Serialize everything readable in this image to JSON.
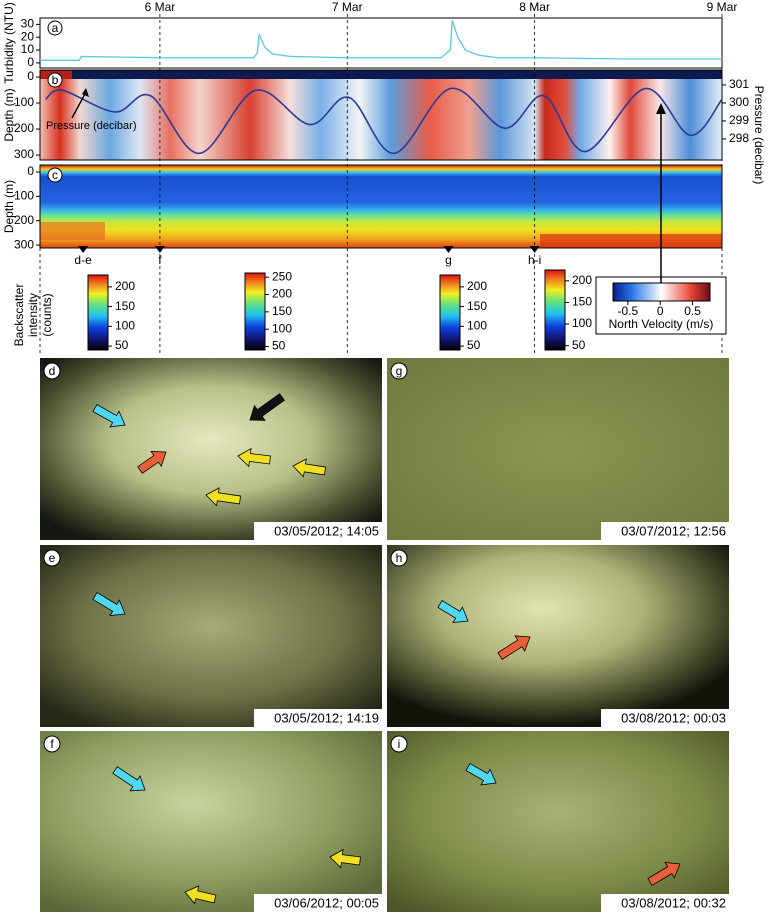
{
  "time_axis": {
    "xlim": [
      5.36,
      9
    ],
    "xticks": [
      {
        "value": 6,
        "label": "6 Mar"
      },
      {
        "value": 7,
        "label": "7 Mar"
      },
      {
        "value": 8,
        "label": "8 Mar"
      },
      {
        "value": 9,
        "label": "9 Mar"
      }
    ],
    "markers": [
      {
        "label": "d-e",
        "x": 5.59
      },
      {
        "label": "f",
        "x": 6.0
      },
      {
        "label": "g",
        "x": 7.54
      },
      {
        "label": "h-i",
        "x": 8.0
      }
    ]
  },
  "chart_data": [
    {
      "type": "line",
      "panel": "a",
      "ylabel": "Turbidity (NTU)",
      "color": "#5cc8dc",
      "x": [
        5.36,
        5.57,
        5.58,
        6.0,
        6.5,
        6.52,
        6.53,
        6.56,
        6.6,
        6.7,
        7.0,
        7.5,
        7.55,
        7.56,
        7.59,
        7.63,
        7.7,
        7.8,
        8.0,
        8.5,
        9.0
      ],
      "values": [
        2,
        2,
        5,
        4,
        4,
        8,
        22,
        12,
        7,
        5,
        4,
        4,
        10,
        33,
        20,
        10,
        6,
        4,
        4,
        3,
        3
      ],
      "ylim": [
        -4,
        35
      ],
      "yticks": [
        0,
        10,
        20,
        30
      ]
    },
    {
      "type": "heatmap-line",
      "panel": "b",
      "ylabel": "Depth (m)",
      "ylim": [
        -27,
        319
      ],
      "yticks": [
        0,
        100,
        200,
        300
      ],
      "y2label": "Pressure (decibar)",
      "y2lim": [
        296.83,
        301.83
      ],
      "y2ticks": [
        298,
        299,
        300,
        301
      ],
      "series": [
        {
          "name": "Pressure (decibar)",
          "color": "#2b3a98",
          "axis": "y2",
          "x": [
            5.39,
            5.48,
            5.76,
            5.95,
            6.21,
            6.51,
            6.8,
            7.01,
            7.25,
            7.55,
            7.84,
            8.05,
            8.27,
            8.59,
            8.83,
            9.0
          ],
          "values": [
            300.2,
            300.7,
            299.5,
            300.4,
            297.2,
            300.7,
            298.8,
            300.3,
            297.2,
            300.8,
            298.6,
            300.4,
            297.3,
            300.8,
            298.2,
            300.2
          ]
        }
      ]
    },
    {
      "type": "heatmap",
      "panel": "c",
      "ylabel": "Depth (m)",
      "ylim": [
        -29,
        312
      ],
      "yticks": [
        0,
        100,
        200,
        300
      ]
    }
  ],
  "backscatter_label": [
    "Backscatter",
    "intensity",
    "(counts)"
  ],
  "colorbars": [
    {
      "clim": [
        40,
        230
      ],
      "ticks": [
        50,
        100,
        150,
        200
      ]
    },
    {
      "clim": [
        40,
        262
      ],
      "ticks": [
        50,
        100,
        150,
        200,
        250
      ]
    },
    {
      "clim": [
        40,
        230
      ],
      "ticks": [
        50,
        100,
        150,
        200
      ]
    },
    {
      "clim": [
        40,
        225
      ],
      "ticks": [
        50,
        100,
        150,
        200
      ]
    }
  ],
  "velocity_colorbar": {
    "label": "North Velocity (m/s)",
    "clim": [
      -0.73,
      0.77
    ],
    "ticks": [
      -0.5,
      0,
      0.5
    ]
  },
  "photos": [
    {
      "label": "d",
      "timestamp": "03/05/2012; 14:05"
    },
    {
      "label": "g",
      "timestamp": "03/07/2012; 12:56"
    },
    {
      "label": "e",
      "timestamp": "03/05/2012; 14:19"
    },
    {
      "label": "h",
      "timestamp": "03/08/2012; 00:03"
    },
    {
      "label": "f",
      "timestamp": "03/06/2012; 00:05"
    },
    {
      "label": "i",
      "timestamp": "03/08/2012; 00:32"
    }
  ]
}
